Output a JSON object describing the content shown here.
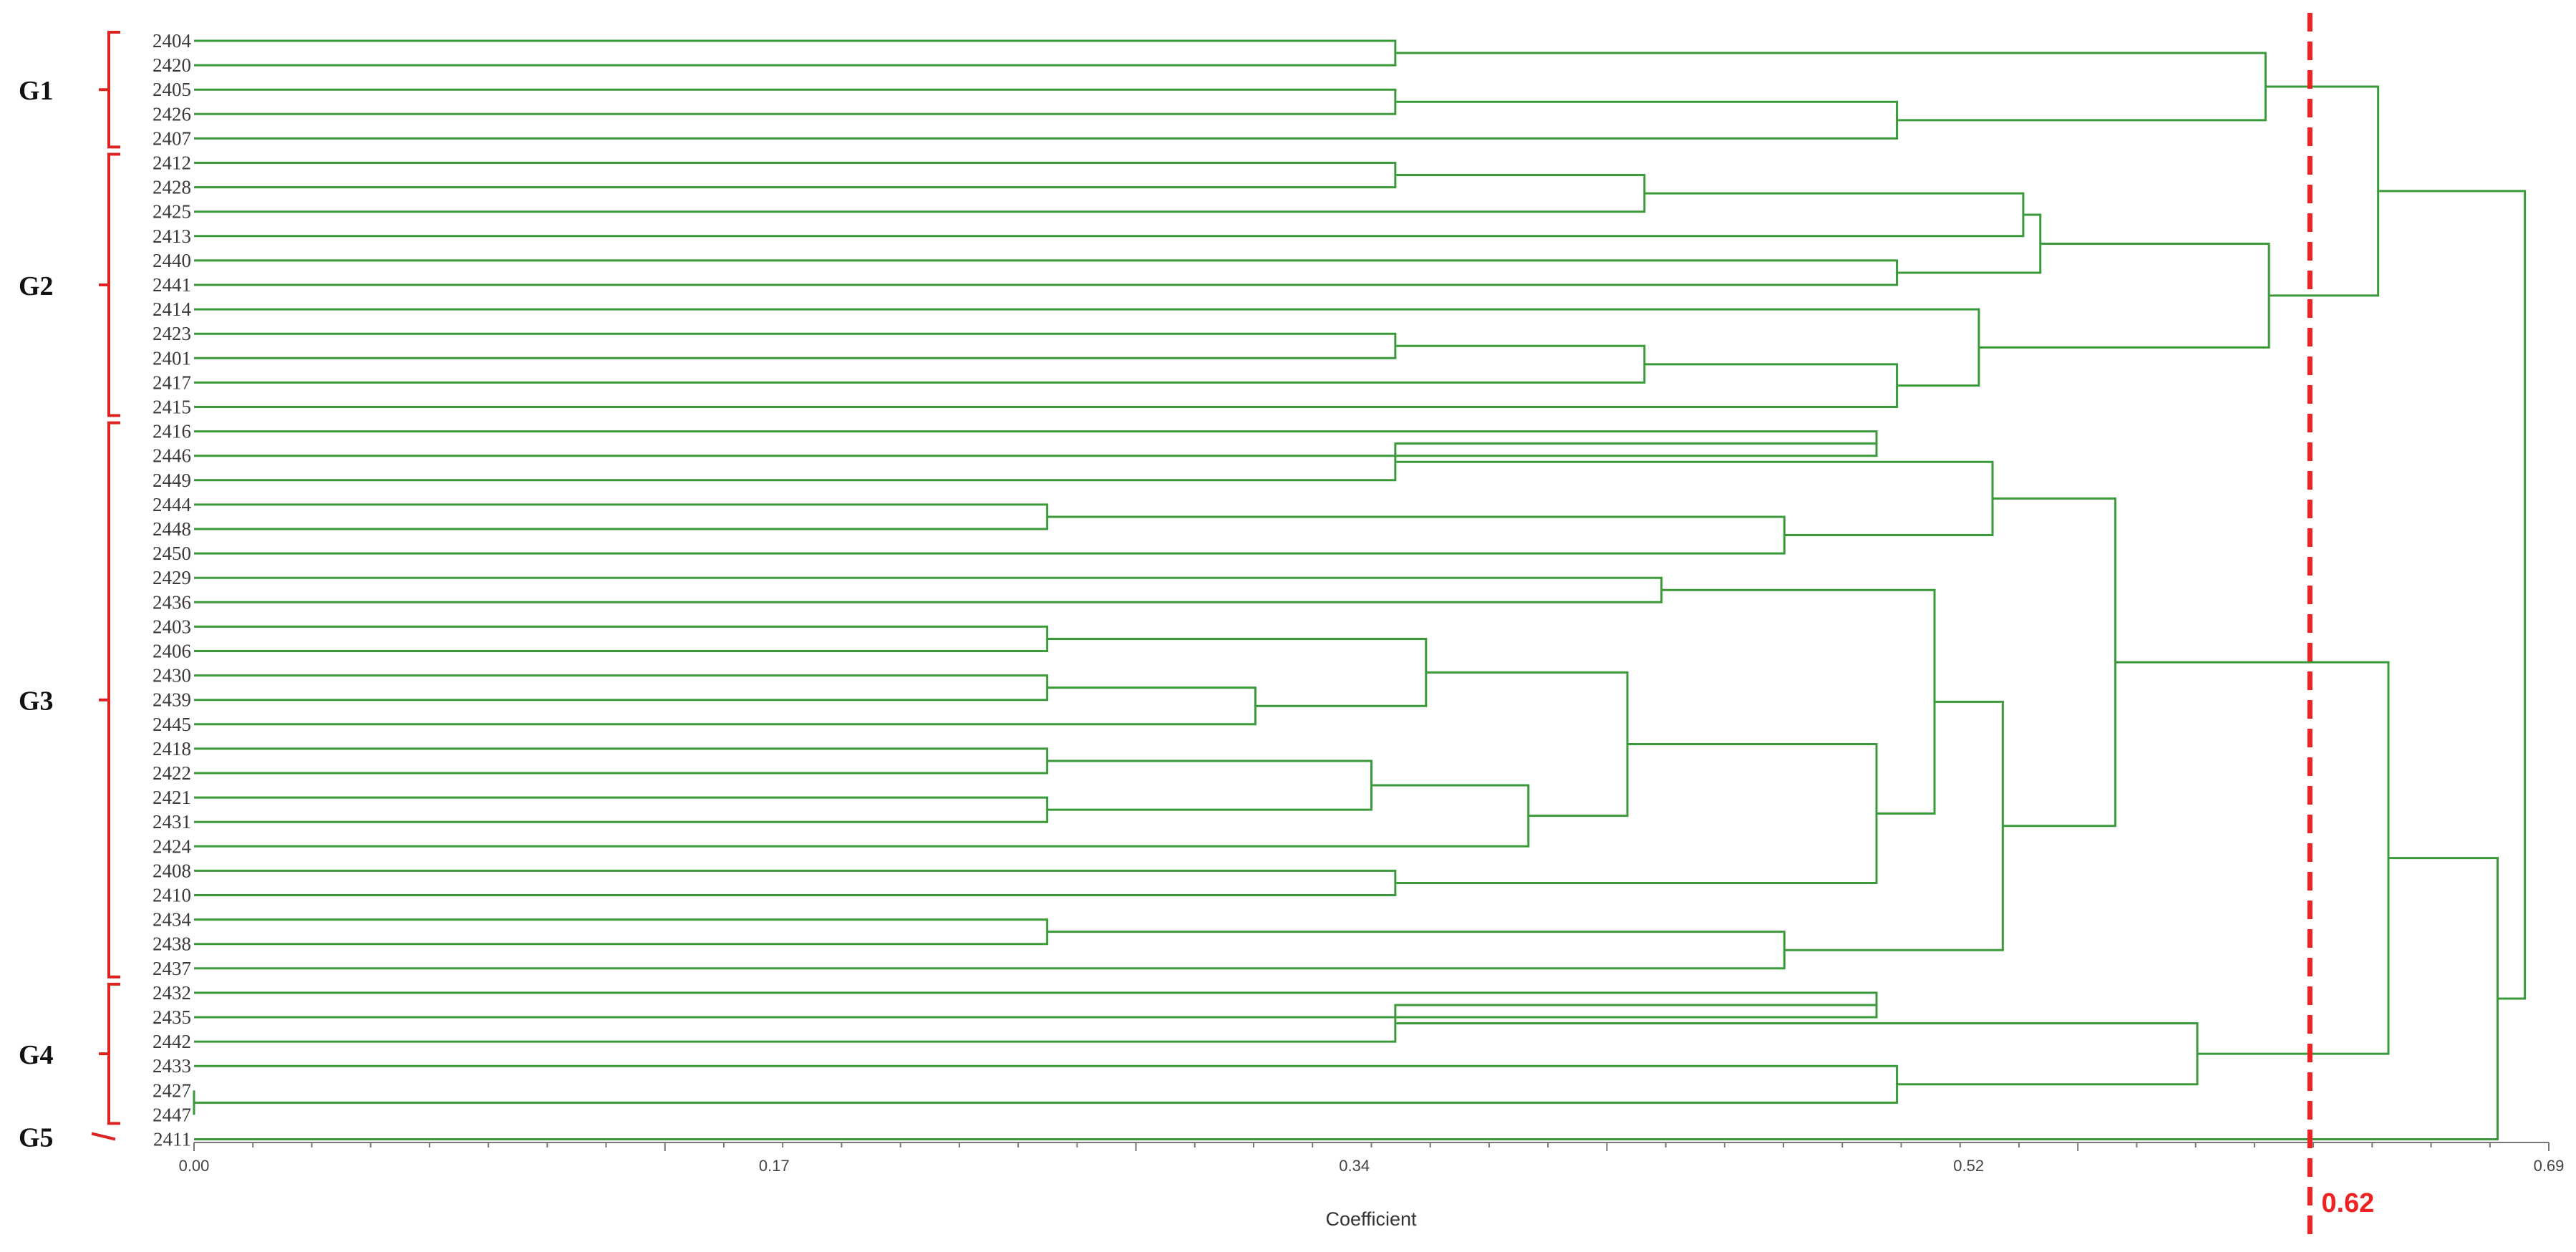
{
  "chart_data": {
    "type": "dendrogram",
    "xlabel": "Coefficient",
    "xlim": [
      0.0,
      0.69
    ],
    "ticks": [
      "0.00",
      "0.17",
      "0.34",
      "0.52",
      "0.69"
    ],
    "tick_values": [
      0.0,
      0.17,
      0.34,
      0.52,
      0.69
    ],
    "threshold": {
      "value": 0.62,
      "label": "0.62"
    },
    "colors": {
      "branch": "#3a9a3a",
      "group": "#dd2222",
      "threshold": "#ee2222"
    },
    "leaves": [
      "2404",
      "2420",
      "2405",
      "2426",
      "2407",
      "2412",
      "2428",
      "2425",
      "2413",
      "2440",
      "2441",
      "2414",
      "2423",
      "2401",
      "2417",
      "2415",
      "2416",
      "2446",
      "2449",
      "2444",
      "2448",
      "2450",
      "2429",
      "2436",
      "2403",
      "2406",
      "2430",
      "2439",
      "2445",
      "2418",
      "2422",
      "2421",
      "2431",
      "2424",
      "2408",
      "2410",
      "2434",
      "2438",
      "2437",
      "2432",
      "2435",
      "2442",
      "2433",
      "2427",
      "2447",
      "2411"
    ],
    "groups": [
      {
        "name": "G1",
        "first": 0,
        "last": 4
      },
      {
        "name": "G2",
        "first": 5,
        "last": 15
      },
      {
        "name": "G3",
        "first": 16,
        "last": 38
      },
      {
        "name": "G4",
        "first": 39,
        "last": 44
      },
      {
        "name": "G5",
        "first": 45,
        "last": 45
      }
    ],
    "merges": [
      {
        "a": "L0",
        "b": "L1",
        "h": 0.352
      },
      {
        "a": "L2",
        "b": "L3",
        "h": 0.352
      },
      {
        "a": "M1",
        "b": "L4",
        "h": 0.499
      },
      {
        "a": "M0",
        "b": "M2",
        "h": 0.607
      },
      {
        "a": "L5",
        "b": "L6",
        "h": 0.352
      },
      {
        "a": "M4",
        "b": "L7",
        "h": 0.425
      },
      {
        "a": "M5",
        "b": "L8",
        "h": 0.536
      },
      {
        "a": "L9",
        "b": "L10",
        "h": 0.499
      },
      {
        "a": "M6",
        "b": "M7",
        "h": 0.541
      },
      {
        "a": "L12",
        "b": "L13",
        "h": 0.352
      },
      {
        "a": "M9",
        "b": "L14",
        "h": 0.425
      },
      {
        "a": "M10",
        "b": "L15",
        "h": 0.499
      },
      {
        "a": "L11",
        "b": "M11",
        "h": 0.523
      },
      {
        "a": "M8",
        "b": "M12",
        "h": 0.608
      },
      {
        "a": "M3",
        "b": "M13",
        "h": 0.64
      },
      {
        "a": "L16",
        "b": "L17",
        "h": 0.493
      },
      {
        "a": "M15",
        "b": "L18",
        "h": 0.352
      },
      {
        "a": "L19",
        "b": "L20",
        "h": 0.25
      },
      {
        "a": "M17",
        "b": "L21",
        "h": 0.466
      },
      {
        "a": "M16",
        "b": "M18",
        "h": 0.527
      },
      {
        "a": "L22",
        "b": "L23",
        "h": 0.43
      },
      {
        "a": "L24",
        "b": "L25",
        "h": 0.25
      },
      {
        "a": "L26",
        "b": "L27",
        "h": 0.25
      },
      {
        "a": "M22",
        "b": "L28",
        "h": 0.311
      },
      {
        "a": "M21",
        "b": "M23",
        "h": 0.361
      },
      {
        "a": "L29",
        "b": "L30",
        "h": 0.25
      },
      {
        "a": "L31",
        "b": "L32",
        "h": 0.25
      },
      {
        "a": "M25",
        "b": "M26",
        "h": 0.345
      },
      {
        "a": "M27",
        "b": "L33",
        "h": 0.391
      },
      {
        "a": "M24",
        "b": "M28",
        "h": 0.42
      },
      {
        "a": "L34",
        "b": "L35",
        "h": 0.352
      },
      {
        "a": "M29",
        "b": "M30",
        "h": 0.493
      },
      {
        "a": "M20",
        "b": "M31",
        "h": 0.51
      },
      {
        "a": "L36",
        "b": "L37",
        "h": 0.25
      },
      {
        "a": "M33",
        "b": "L38",
        "h": 0.466
      },
      {
        "a": "M32",
        "b": "M34",
        "h": 0.53
      },
      {
        "a": "M19",
        "b": "M35",
        "h": 0.563
      },
      {
        "a": "L39",
        "b": "L40",
        "h": 0.493
      },
      {
        "a": "M37",
        "b": "L41",
        "h": 0.352
      },
      {
        "a": "L43",
        "b": "L44",
        "h": 0.0
      },
      {
        "a": "L42",
        "b": "M39",
        "h": 0.499
      },
      {
        "a": "M38",
        "b": "M40",
        "h": 0.587
      },
      {
        "a": "M36",
        "b": "M41",
        "h": 0.643
      },
      {
        "a": "M42",
        "b": "L45",
        "h": 0.675
      },
      {
        "a": "M14",
        "b": "M43",
        "h": 0.683
      }
    ]
  }
}
